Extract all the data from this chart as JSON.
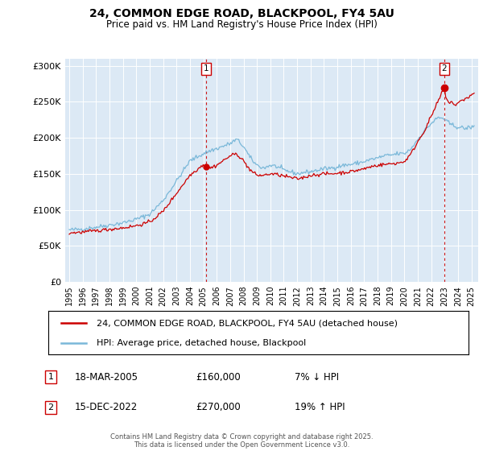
{
  "title": "24, COMMON EDGE ROAD, BLACKPOOL, FY4 5AU",
  "subtitle": "Price paid vs. HM Land Registry's House Price Index (HPI)",
  "ylabel_ticks": [
    "£0",
    "£50K",
    "£100K",
    "£150K",
    "£200K",
    "£250K",
    "£300K"
  ],
  "ytick_values": [
    0,
    50000,
    100000,
    150000,
    200000,
    250000,
    300000
  ],
  "ylim": [
    0,
    310000
  ],
  "xlim_start": 1994.7,
  "xlim_end": 2025.5,
  "legend_line1": "24, COMMON EDGE ROAD, BLACKPOOL, FY4 5AU (detached house)",
  "legend_line2": "HPI: Average price, detached house, Blackpool",
  "annotation1_date": "18-MAR-2005",
  "annotation1_price": "£160,000",
  "annotation1_pct": "7% ↓ HPI",
  "annotation2_date": "15-DEC-2022",
  "annotation2_price": "£270,000",
  "annotation2_pct": "19% ↑ HPI",
  "footer": "Contains HM Land Registry data © Crown copyright and database right 2025.\nThis data is licensed under the Open Government Licence v3.0.",
  "hpi_color": "#7ab8d9",
  "price_color": "#cc0000",
  "annotation_color": "#cc0000",
  "plot_bg": "#dce9f5",
  "grid_color": "#ffffff",
  "sale1_x": 2005.21,
  "sale1_y": 160000,
  "sale2_x": 2022.96,
  "sale2_y": 270000
}
